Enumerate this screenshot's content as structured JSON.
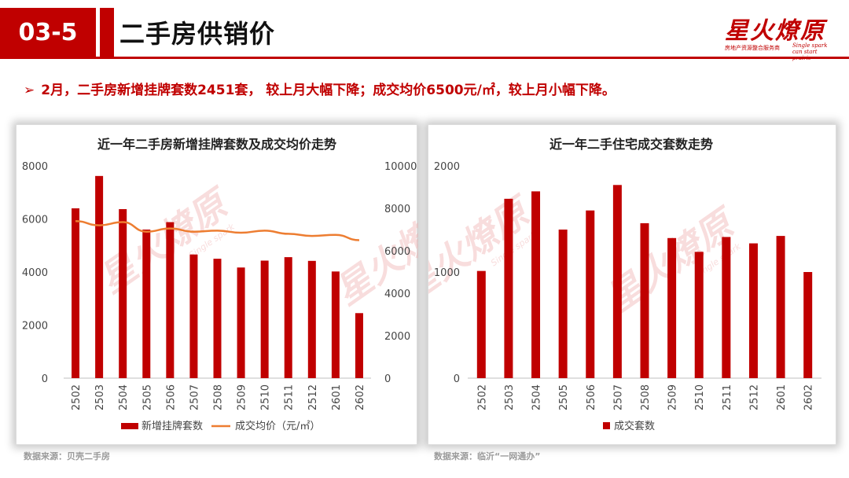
{
  "header": {
    "section_number": "03-5",
    "title": "二手房供销价",
    "logo_text": "星火燎原",
    "logo_tagline": "房地产资源整合服务商",
    "logo_en_1": "Single spark",
    "logo_en_2": "can start prairie"
  },
  "bullet": {
    "arrow": "➢",
    "text": "2月，二手房新增挂牌套数2451套， 较上月大幅下降；成交均价6500元/㎡，较上月小幅下降。"
  },
  "sources": {
    "left": "数据来源：贝壳二手房",
    "right": "数据来源：临沂“一网通办”"
  },
  "colors": {
    "accent": "#c00000",
    "bar": "#c00000",
    "line": "#ed7d31",
    "watermark": "#f0b4b4"
  },
  "chart_data": [
    {
      "type": "bar+line",
      "title": "近一年二手房新增挂牌套数及成交均价走势",
      "categories": [
        "2502",
        "2503",
        "2504",
        "2505",
        "2506",
        "2507",
        "2508",
        "2509",
        "2510",
        "2511",
        "2512",
        "2601",
        "2602"
      ],
      "y_left": {
        "ylim": [
          0,
          8000
        ],
        "ticks": [
          0,
          2000,
          4000,
          6000,
          8000
        ]
      },
      "y_right": {
        "ylim": [
          0,
          10000
        ],
        "ticks": [
          0,
          2000,
          4000,
          6000,
          8000,
          10000
        ]
      },
      "series": [
        {
          "name": "新增挂牌套数",
          "type": "bar",
          "axis": "left",
          "values": [
            6400,
            7620,
            6370,
            5600,
            5880,
            4660,
            4500,
            4170,
            4430,
            4560,
            4420,
            4020,
            2451
          ]
        },
        {
          "name": "成交均价（元/㎡）",
          "type": "line",
          "axis": "right",
          "values": [
            7400,
            7200,
            7350,
            6900,
            7050,
            6900,
            6950,
            6850,
            6950,
            6800,
            6700,
            6750,
            6500
          ]
        }
      ],
      "legend": "bottom",
      "grid": false
    },
    {
      "type": "bar",
      "title": "近一年二手住宅成交套数走势",
      "categories": [
        "2502",
        "2503",
        "2504",
        "2505",
        "2506",
        "2507",
        "2508",
        "2509",
        "2510",
        "2511",
        "2512",
        "2601",
        "2602"
      ],
      "ylim": [
        0,
        2000
      ],
      "ticks": [
        0,
        1000,
        2000
      ],
      "series": [
        {
          "name": "成交套数",
          "values": [
            1010,
            1690,
            1760,
            1400,
            1580,
            1820,
            1460,
            1320,
            1190,
            1330,
            1270,
            1340,
            1000
          ]
        }
      ],
      "legend": "bottom",
      "grid": false
    }
  ]
}
